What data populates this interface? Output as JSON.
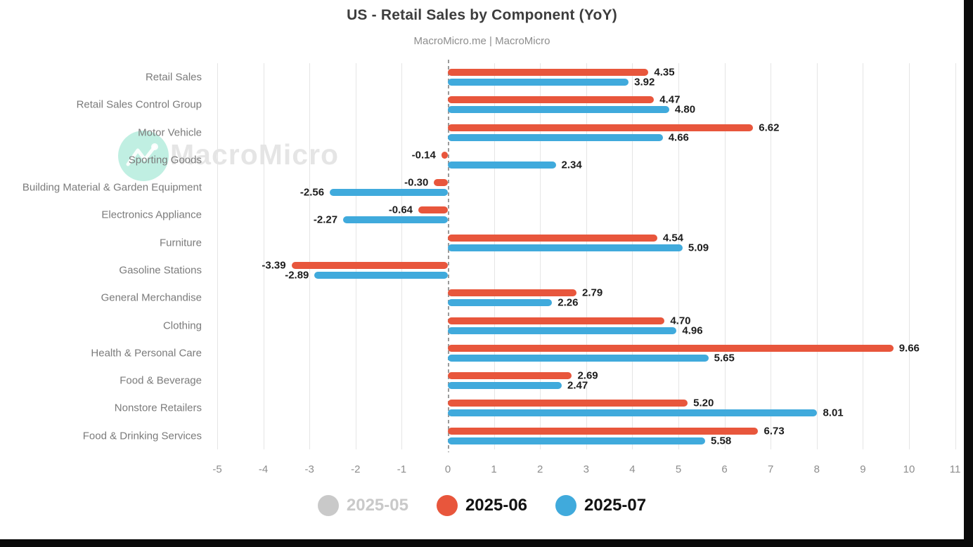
{
  "chart_data": {
    "type": "bar",
    "orientation": "horizontal",
    "title": "US - Retail Sales by Component (YoY)",
    "subtitle": "MacroMicro.me | MacroMicro",
    "categories": [
      "Retail Sales",
      "Retail Sales Control Group",
      "Motor Vehicle",
      "Sporting Goods",
      "Building Material & Garden Equipment",
      "Electronics Appliance",
      "Furniture",
      "Gasoline Stations",
      "General Merchandise",
      "Clothing",
      "Health & Personal Care",
      "Food & Beverage",
      "Nonstore Retailers",
      "Food & Drinking Services"
    ],
    "series": [
      {
        "name": "2025-05",
        "color": "#C9C9C9",
        "visible": false,
        "values": null
      },
      {
        "name": "2025-06",
        "color": "#E8563C",
        "visible": true,
        "values": [
          4.35,
          4.47,
          6.62,
          -0.14,
          -0.3,
          -0.64,
          4.54,
          -3.39,
          2.79,
          4.7,
          9.66,
          2.69,
          5.2,
          6.73
        ]
      },
      {
        "name": "2025-07",
        "color": "#40AADC",
        "visible": true,
        "values": [
          3.92,
          4.8,
          4.66,
          2.34,
          -2.56,
          -2.27,
          5.09,
          -2.89,
          2.26,
          4.96,
          5.65,
          2.47,
          8.01,
          5.58
        ]
      }
    ],
    "xlim": [
      -5,
      11
    ],
    "x_ticks": [
      -5,
      -4,
      -3,
      -2,
      -1,
      0,
      1,
      2,
      3,
      4,
      5,
      6,
      7,
      8,
      9,
      10,
      11
    ],
    "grid": true,
    "zero_line_style": "dashed",
    "legend_position": "bottom",
    "value_labels": true,
    "value_label_decimals": 2
  },
  "watermark": {
    "brand": "MacroMicro",
    "icon": "line-chart-logo-icon",
    "circle_color": "#8DE2CB"
  },
  "colors": {
    "background": "#FFFFFF",
    "edge": "#0B0B0B",
    "grid": "#E5E5E5",
    "zero_line": "#9B9B9B",
    "title": "#3D3D3D",
    "subtitle": "#8D8D8D",
    "category_label": "#7B7B7B",
    "axis_label": "#8D8D8D",
    "value_label": "#1C1C1C",
    "legend_dim_text": "#C9C9C9"
  }
}
